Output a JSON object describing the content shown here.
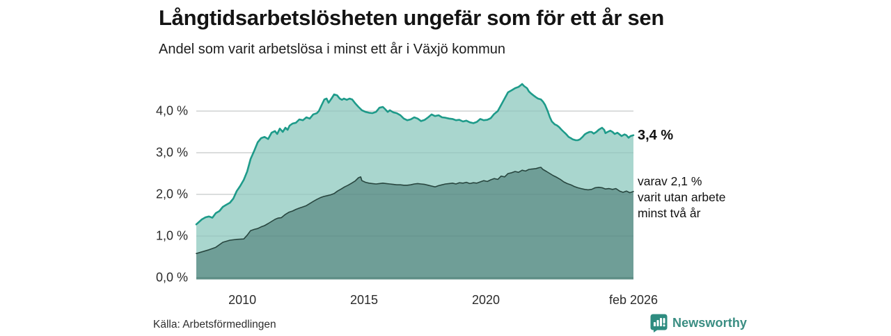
{
  "header": {
    "title": "Långtidsarbetslösheten ungefär som för ett år sen",
    "subtitle": "Andel som varit arbetslösa i minst ett år i Växjö kommun"
  },
  "footer": {
    "source": "Källa: Arbetsförmedlingen",
    "brand": "Newsworthy"
  },
  "colors": {
    "line_total": "#1e9b8a",
    "fill_total": "#a9d6ce",
    "line_two_years": "#28463f",
    "fill_two_years": "#6f9e97",
    "baseline": "#5f8f87",
    "gridline": "#d8d8d8",
    "grid_overlay": "rgba(25,60,54,0.09)",
    "brand_teal": "#2e8c80",
    "text_dark": "#141414"
  },
  "chart_data": {
    "type": "area",
    "title": "Långtidsarbetslösheten ungefär som för ett år sen",
    "subtitle": "Andel som varit arbetslösa i minst ett år i Växjö kommun",
    "xlabel": "",
    "ylabel": "",
    "xlim": [
      2008.11,
      2026.06
    ],
    "ylim": [
      0,
      4.75
    ],
    "grid": true,
    "legend_position": "none",
    "x_ticks": [
      {
        "year": 2010,
        "label": "2010"
      },
      {
        "year": 2015,
        "label": "2015"
      },
      {
        "year": 2020,
        "label": "2020"
      },
      {
        "year": 2026.06,
        "label": "feb 2026"
      }
    ],
    "y_ticks": [
      {
        "value": 0,
        "label": "0,0 %"
      },
      {
        "value": 1,
        "label": "1,0 %"
      },
      {
        "value": 2,
        "label": "2,0 %"
      },
      {
        "value": 3,
        "label": "3,0 %"
      },
      {
        "value": 4,
        "label": "4,0 %"
      }
    ],
    "annotations": {
      "last_total": "3,4 %",
      "secondary_lines": [
        "varav 2,1 %",
        "varit utan arbete",
        "minst två år"
      ]
    },
    "series": [
      {
        "name": "Andel arbetslösa minst ett år",
        "last_value_label": "3,4 %",
        "points": [
          [
            2008.11,
            1.28
          ],
          [
            2008.34,
            1.4
          ],
          [
            2008.49,
            1.45
          ],
          [
            2008.63,
            1.47
          ],
          [
            2008.77,
            1.44
          ],
          [
            2008.91,
            1.55
          ],
          [
            2009.06,
            1.6
          ],
          [
            2009.2,
            1.7
          ],
          [
            2009.34,
            1.75
          ],
          [
            2009.49,
            1.8
          ],
          [
            2009.63,
            1.9
          ],
          [
            2009.77,
            2.08
          ],
          [
            2009.91,
            2.2
          ],
          [
            2010.06,
            2.35
          ],
          [
            2010.2,
            2.55
          ],
          [
            2010.34,
            2.85
          ],
          [
            2010.49,
            3.05
          ],
          [
            2010.63,
            3.25
          ],
          [
            2010.77,
            3.35
          ],
          [
            2010.91,
            3.38
          ],
          [
            2011.06,
            3.33
          ],
          [
            2011.2,
            3.48
          ],
          [
            2011.34,
            3.52
          ],
          [
            2011.43,
            3.45
          ],
          [
            2011.54,
            3.58
          ],
          [
            2011.66,
            3.5
          ],
          [
            2011.77,
            3.6
          ],
          [
            2011.86,
            3.55
          ],
          [
            2011.94,
            3.65
          ],
          [
            2012.06,
            3.7
          ],
          [
            2012.2,
            3.72
          ],
          [
            2012.34,
            3.8
          ],
          [
            2012.49,
            3.78
          ],
          [
            2012.63,
            3.85
          ],
          [
            2012.77,
            3.82
          ],
          [
            2012.91,
            3.92
          ],
          [
            2013.06,
            3.95
          ],
          [
            2013.14,
            4.0
          ],
          [
            2013.26,
            4.15
          ],
          [
            2013.37,
            4.28
          ],
          [
            2013.46,
            4.3
          ],
          [
            2013.54,
            4.2
          ],
          [
            2013.66,
            4.3
          ],
          [
            2013.77,
            4.4
          ],
          [
            2013.89,
            4.38
          ],
          [
            2014.0,
            4.3
          ],
          [
            2014.09,
            4.27
          ],
          [
            2014.17,
            4.3
          ],
          [
            2014.29,
            4.27
          ],
          [
            2014.4,
            4.3
          ],
          [
            2014.51,
            4.28
          ],
          [
            2014.63,
            4.19
          ],
          [
            2014.77,
            4.1
          ],
          [
            2014.91,
            4.02
          ],
          [
            2015.06,
            3.98
          ],
          [
            2015.2,
            3.96
          ],
          [
            2015.34,
            3.95
          ],
          [
            2015.49,
            3.98
          ],
          [
            2015.63,
            4.08
          ],
          [
            2015.77,
            4.1
          ],
          [
            2015.86,
            4.05
          ],
          [
            2015.97,
            3.98
          ],
          [
            2016.06,
            4.02
          ],
          [
            2016.2,
            3.97
          ],
          [
            2016.34,
            3.95
          ],
          [
            2016.49,
            3.9
          ],
          [
            2016.63,
            3.82
          ],
          [
            2016.77,
            3.78
          ],
          [
            2016.91,
            3.8
          ],
          [
            2017.06,
            3.85
          ],
          [
            2017.2,
            3.82
          ],
          [
            2017.34,
            3.76
          ],
          [
            2017.49,
            3.79
          ],
          [
            2017.63,
            3.85
          ],
          [
            2017.77,
            3.92
          ],
          [
            2017.91,
            3.88
          ],
          [
            2018.06,
            3.9
          ],
          [
            2018.2,
            3.85
          ],
          [
            2018.34,
            3.84
          ],
          [
            2018.49,
            3.82
          ],
          [
            2018.63,
            3.81
          ],
          [
            2018.77,
            3.78
          ],
          [
            2018.91,
            3.79
          ],
          [
            2019.06,
            3.75
          ],
          [
            2019.2,
            3.77
          ],
          [
            2019.34,
            3.73
          ],
          [
            2019.49,
            3.71
          ],
          [
            2019.63,
            3.74
          ],
          [
            2019.77,
            3.81
          ],
          [
            2019.91,
            3.78
          ],
          [
            2020.06,
            3.79
          ],
          [
            2020.2,
            3.83
          ],
          [
            2020.34,
            3.93
          ],
          [
            2020.49,
            4.0
          ],
          [
            2020.63,
            4.15
          ],
          [
            2020.77,
            4.3
          ],
          [
            2020.91,
            4.45
          ],
          [
            2021.06,
            4.5
          ],
          [
            2021.2,
            4.55
          ],
          [
            2021.34,
            4.58
          ],
          [
            2021.43,
            4.62
          ],
          [
            2021.49,
            4.65
          ],
          [
            2021.57,
            4.6
          ],
          [
            2021.69,
            4.55
          ],
          [
            2021.77,
            4.47
          ],
          [
            2021.86,
            4.42
          ],
          [
            2021.97,
            4.37
          ],
          [
            2022.06,
            4.33
          ],
          [
            2022.14,
            4.3
          ],
          [
            2022.26,
            4.28
          ],
          [
            2022.34,
            4.23
          ],
          [
            2022.43,
            4.15
          ],
          [
            2022.54,
            4.0
          ],
          [
            2022.63,
            3.85
          ],
          [
            2022.71,
            3.75
          ],
          [
            2022.83,
            3.68
          ],
          [
            2022.91,
            3.66
          ],
          [
            2023.0,
            3.62
          ],
          [
            2023.11,
            3.55
          ],
          [
            2023.2,
            3.5
          ],
          [
            2023.29,
            3.45
          ],
          [
            2023.4,
            3.38
          ],
          [
            2023.49,
            3.35
          ],
          [
            2023.57,
            3.32
          ],
          [
            2023.69,
            3.3
          ],
          [
            2023.77,
            3.3
          ],
          [
            2023.86,
            3.32
          ],
          [
            2023.97,
            3.38
          ],
          [
            2024.06,
            3.44
          ],
          [
            2024.14,
            3.47
          ],
          [
            2024.26,
            3.5
          ],
          [
            2024.34,
            3.5
          ],
          [
            2024.43,
            3.46
          ],
          [
            2024.54,
            3.5
          ],
          [
            2024.63,
            3.55
          ],
          [
            2024.71,
            3.58
          ],
          [
            2024.77,
            3.6
          ],
          [
            2024.86,
            3.55
          ],
          [
            2024.91,
            3.47
          ],
          [
            2025.0,
            3.5
          ],
          [
            2025.11,
            3.53
          ],
          [
            2025.2,
            3.5
          ],
          [
            2025.29,
            3.45
          ],
          [
            2025.4,
            3.48
          ],
          [
            2025.49,
            3.44
          ],
          [
            2025.57,
            3.4
          ],
          [
            2025.69,
            3.44
          ],
          [
            2025.77,
            3.42
          ],
          [
            2025.86,
            3.36
          ],
          [
            2025.94,
            3.4
          ],
          [
            2026.06,
            3.42
          ]
        ]
      },
      {
        "name": "varav utan arbete minst två år",
        "last_value_label": "2,1 %",
        "points": [
          [
            2008.11,
            0.58
          ],
          [
            2008.34,
            0.62
          ],
          [
            2008.63,
            0.67
          ],
          [
            2008.91,
            0.73
          ],
          [
            2009.2,
            0.85
          ],
          [
            2009.49,
            0.9
          ],
          [
            2009.77,
            0.92
          ],
          [
            2010.06,
            0.93
          ],
          [
            2010.2,
            1.02
          ],
          [
            2010.34,
            1.13
          ],
          [
            2010.49,
            1.16
          ],
          [
            2010.63,
            1.18
          ],
          [
            2010.77,
            1.22
          ],
          [
            2010.91,
            1.25
          ],
          [
            2011.06,
            1.3
          ],
          [
            2011.2,
            1.35
          ],
          [
            2011.34,
            1.4
          ],
          [
            2011.46,
            1.43
          ],
          [
            2011.6,
            1.44
          ],
          [
            2011.77,
            1.52
          ],
          [
            2011.91,
            1.57
          ],
          [
            2012.06,
            1.6
          ],
          [
            2012.2,
            1.64
          ],
          [
            2012.34,
            1.67
          ],
          [
            2012.49,
            1.7
          ],
          [
            2012.63,
            1.73
          ],
          [
            2012.77,
            1.78
          ],
          [
            2012.91,
            1.83
          ],
          [
            2013.06,
            1.88
          ],
          [
            2013.2,
            1.92
          ],
          [
            2013.34,
            1.95
          ],
          [
            2013.49,
            1.97
          ],
          [
            2013.63,
            1.99
          ],
          [
            2013.77,
            2.02
          ],
          [
            2013.91,
            2.08
          ],
          [
            2014.06,
            2.13
          ],
          [
            2014.2,
            2.18
          ],
          [
            2014.34,
            2.22
          ],
          [
            2014.49,
            2.27
          ],
          [
            2014.63,
            2.32
          ],
          [
            2014.77,
            2.4
          ],
          [
            2014.86,
            2.42
          ],
          [
            2014.91,
            2.33
          ],
          [
            2015.06,
            2.29
          ],
          [
            2015.2,
            2.27
          ],
          [
            2015.34,
            2.26
          ],
          [
            2015.49,
            2.25
          ],
          [
            2015.63,
            2.26
          ],
          [
            2015.77,
            2.27
          ],
          [
            2015.91,
            2.26
          ],
          [
            2016.06,
            2.25
          ],
          [
            2016.2,
            2.24
          ],
          [
            2016.34,
            2.23
          ],
          [
            2016.49,
            2.23
          ],
          [
            2016.63,
            2.22
          ],
          [
            2016.77,
            2.22
          ],
          [
            2016.91,
            2.23
          ],
          [
            2017.06,
            2.25
          ],
          [
            2017.2,
            2.26
          ],
          [
            2017.34,
            2.25
          ],
          [
            2017.49,
            2.24
          ],
          [
            2017.63,
            2.22
          ],
          [
            2017.77,
            2.2
          ],
          [
            2017.91,
            2.18
          ],
          [
            2018.06,
            2.21
          ],
          [
            2018.2,
            2.23
          ],
          [
            2018.34,
            2.25
          ],
          [
            2018.49,
            2.26
          ],
          [
            2018.63,
            2.27
          ],
          [
            2018.77,
            2.25
          ],
          [
            2018.91,
            2.28
          ],
          [
            2019.06,
            2.27
          ],
          [
            2019.2,
            2.29
          ],
          [
            2019.34,
            2.26
          ],
          [
            2019.49,
            2.28
          ],
          [
            2019.63,
            2.27
          ],
          [
            2019.77,
            2.3
          ],
          [
            2019.91,
            2.33
          ],
          [
            2020.06,
            2.31
          ],
          [
            2020.2,
            2.35
          ],
          [
            2020.34,
            2.38
          ],
          [
            2020.49,
            2.36
          ],
          [
            2020.63,
            2.44
          ],
          [
            2020.77,
            2.42
          ],
          [
            2020.91,
            2.5
          ],
          [
            2021.06,
            2.52
          ],
          [
            2021.2,
            2.55
          ],
          [
            2021.34,
            2.53
          ],
          [
            2021.49,
            2.58
          ],
          [
            2021.63,
            2.56
          ],
          [
            2021.77,
            2.6
          ],
          [
            2021.91,
            2.61
          ],
          [
            2022.06,
            2.62
          ],
          [
            2022.17,
            2.64
          ],
          [
            2022.26,
            2.65
          ],
          [
            2022.34,
            2.6
          ],
          [
            2022.49,
            2.55
          ],
          [
            2022.63,
            2.5
          ],
          [
            2022.77,
            2.45
          ],
          [
            2022.91,
            2.41
          ],
          [
            2023.06,
            2.36
          ],
          [
            2023.2,
            2.3
          ],
          [
            2023.34,
            2.26
          ],
          [
            2023.49,
            2.23
          ],
          [
            2023.63,
            2.19
          ],
          [
            2023.77,
            2.16
          ],
          [
            2023.91,
            2.14
          ],
          [
            2024.06,
            2.12
          ],
          [
            2024.2,
            2.11
          ],
          [
            2024.34,
            2.12
          ],
          [
            2024.49,
            2.16
          ],
          [
            2024.63,
            2.17
          ],
          [
            2024.77,
            2.16
          ],
          [
            2024.91,
            2.13
          ],
          [
            2025.06,
            2.14
          ],
          [
            2025.2,
            2.12
          ],
          [
            2025.34,
            2.14
          ],
          [
            2025.49,
            2.08
          ],
          [
            2025.63,
            2.05
          ],
          [
            2025.77,
            2.08
          ],
          [
            2025.91,
            2.04
          ],
          [
            2026.06,
            2.07
          ]
        ]
      }
    ]
  }
}
